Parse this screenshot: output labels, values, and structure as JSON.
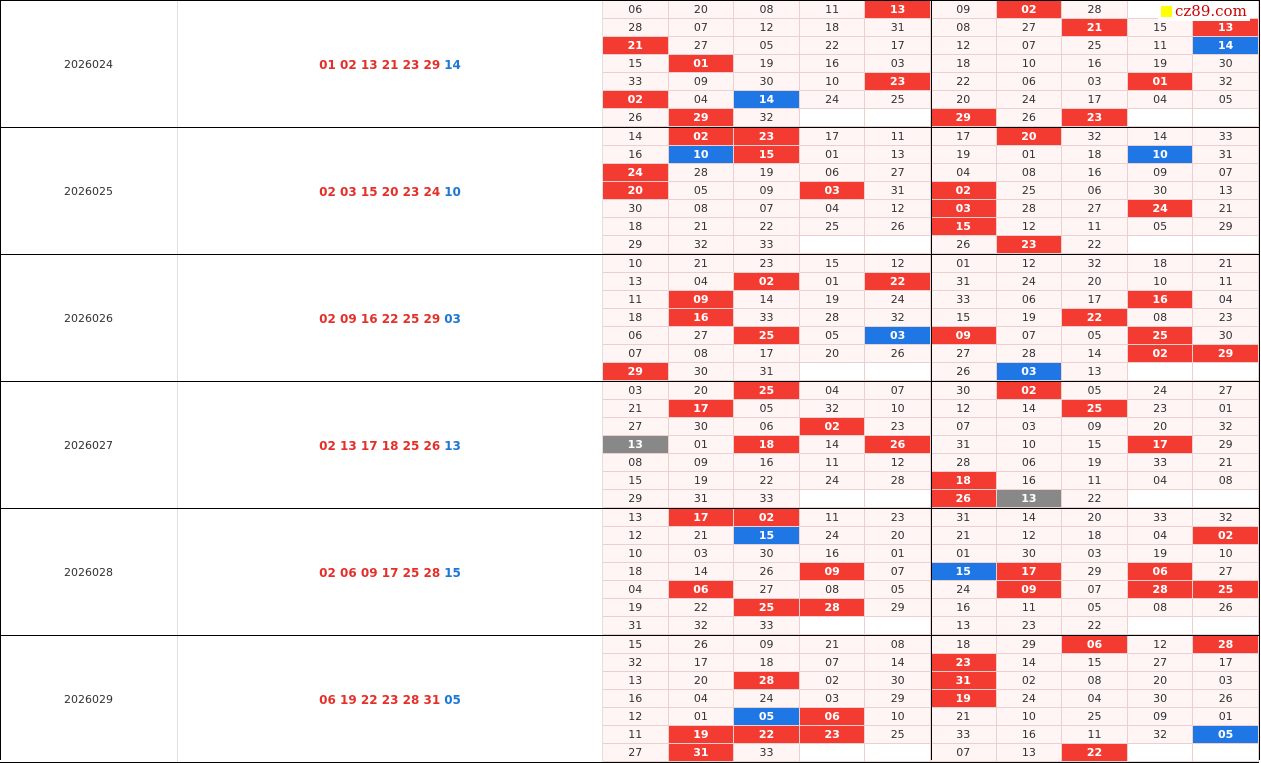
{
  "watermark": "cz89.com",
  "blocks": [
    {
      "period": "2026024",
      "red": "01 02 13 21 23 29",
      "blue": "14",
      "grid": [
        [
          "06",
          "20",
          "08",
          "11",
          {
            "v": "13",
            "hl": "red"
          },
          "09",
          {
            "v": "02",
            "hl": "red"
          },
          "28",
          null,
          null
        ],
        [
          "28",
          "07",
          "12",
          "18",
          "31",
          "08",
          "27",
          {
            "v": "21",
            "hl": "red"
          },
          "15",
          {
            "v": "13",
            "hl": "red"
          }
        ],
        [
          {
            "v": "21",
            "hl": "red"
          },
          "27",
          "05",
          "22",
          "17",
          "12",
          "07",
          "25",
          "11",
          {
            "v": "14",
            "hl": "blue"
          }
        ],
        [
          "15",
          {
            "v": "01",
            "hl": "red"
          },
          "19",
          "16",
          "03",
          "18",
          "10",
          "16",
          "19",
          "30"
        ],
        [
          "33",
          "09",
          "30",
          "10",
          {
            "v": "23",
            "hl": "red"
          },
          "22",
          "06",
          "03",
          {
            "v": "01",
            "hl": "red"
          },
          "32"
        ],
        [
          {
            "v": "02",
            "hl": "red"
          },
          "04",
          {
            "v": "14",
            "hl": "blue"
          },
          "24",
          "25",
          "20",
          "24",
          "17",
          "04",
          "05"
        ],
        [
          "26",
          {
            "v": "29",
            "hl": "red"
          },
          "32",
          null,
          null,
          {
            "v": "29",
            "hl": "red"
          },
          "26",
          {
            "v": "23",
            "hl": "red"
          },
          null,
          null
        ]
      ]
    },
    {
      "period": "2026025",
      "red": "02 03 15 20 23 24",
      "blue": "10",
      "grid": [
        [
          "14",
          {
            "v": "02",
            "hl": "red"
          },
          {
            "v": "23",
            "hl": "red"
          },
          "17",
          "11",
          "17",
          {
            "v": "20",
            "hl": "red"
          },
          "32",
          "14",
          "33"
        ],
        [
          "16",
          {
            "v": "10",
            "hl": "blue"
          },
          {
            "v": "15",
            "hl": "red"
          },
          "01",
          "13",
          "19",
          "01",
          "18",
          {
            "v": "10",
            "hl": "blue"
          },
          "31"
        ],
        [
          {
            "v": "24",
            "hl": "red"
          },
          "28",
          "19",
          "06",
          "27",
          "04",
          "08",
          "16",
          "09",
          "07"
        ],
        [
          {
            "v": "20",
            "hl": "red"
          },
          "05",
          "09",
          {
            "v": "03",
            "hl": "red"
          },
          "31",
          {
            "v": "02",
            "hl": "red"
          },
          "25",
          "06",
          "30",
          "13"
        ],
        [
          "30",
          "08",
          "07",
          "04",
          "12",
          {
            "v": "03",
            "hl": "red"
          },
          "28",
          "27",
          {
            "v": "24",
            "hl": "red"
          },
          "21"
        ],
        [
          "18",
          "21",
          "22",
          "25",
          "26",
          {
            "v": "15",
            "hl": "red"
          },
          "12",
          "11",
          "05",
          "29"
        ],
        [
          "29",
          "32",
          "33",
          null,
          null,
          "26",
          {
            "v": "23",
            "hl": "red"
          },
          "22",
          null,
          null
        ]
      ]
    },
    {
      "period": "2026026",
      "red": "02 09 16 22 25 29",
      "blue": "03",
      "grid": [
        [
          "10",
          "21",
          "23",
          "15",
          "12",
          "01",
          "12",
          "32",
          "18",
          "21"
        ],
        [
          "13",
          "04",
          {
            "v": "02",
            "hl": "red"
          },
          "01",
          {
            "v": "22",
            "hl": "red"
          },
          "31",
          "24",
          "20",
          "10",
          "11"
        ],
        [
          "11",
          {
            "v": "09",
            "hl": "red"
          },
          "14",
          "19",
          "24",
          "33",
          "06",
          "17",
          {
            "v": "16",
            "hl": "red"
          },
          "04"
        ],
        [
          "18",
          {
            "v": "16",
            "hl": "red"
          },
          "33",
          "28",
          "32",
          "15",
          "19",
          {
            "v": "22",
            "hl": "red"
          },
          "08",
          "23"
        ],
        [
          "06",
          "27",
          {
            "v": "25",
            "hl": "red"
          },
          "05",
          {
            "v": "03",
            "hl": "blue"
          },
          {
            "v": "09",
            "hl": "red"
          },
          "07",
          "05",
          {
            "v": "25",
            "hl": "red"
          },
          "30"
        ],
        [
          "07",
          "08",
          "17",
          "20",
          "26",
          "27",
          "28",
          "14",
          {
            "v": "02",
            "hl": "red"
          },
          {
            "v": "29",
            "hl": "red"
          }
        ],
        [
          {
            "v": "29",
            "hl": "red"
          },
          "30",
          "31",
          null,
          null,
          "26",
          {
            "v": "03",
            "hl": "blue"
          },
          "13",
          null,
          null
        ]
      ]
    },
    {
      "period": "2026027",
      "red": "02 13 17 18 25 26",
      "blue": "13",
      "grid": [
        [
          "03",
          "20",
          {
            "v": "25",
            "hl": "red"
          },
          "04",
          "07",
          "30",
          {
            "v": "02",
            "hl": "red"
          },
          "05",
          "24",
          "27"
        ],
        [
          "21",
          {
            "v": "17",
            "hl": "red"
          },
          "05",
          "32",
          "10",
          "12",
          "14",
          {
            "v": "25",
            "hl": "red"
          },
          "23",
          "01"
        ],
        [
          "27",
          "30",
          "06",
          {
            "v": "02",
            "hl": "red"
          },
          "23",
          "07",
          "03",
          "09",
          "20",
          "32"
        ],
        [
          {
            "v": "13",
            "hl": "gray"
          },
          "01",
          {
            "v": "18",
            "hl": "red"
          },
          "14",
          {
            "v": "26",
            "hl": "red"
          },
          "31",
          "10",
          "15",
          {
            "v": "17",
            "hl": "red"
          },
          "29"
        ],
        [
          "08",
          "09",
          "16",
          "11",
          "12",
          "28",
          "06",
          "19",
          "33",
          "21"
        ],
        [
          "15",
          "19",
          "22",
          "24",
          "28",
          {
            "v": "18",
            "hl": "red"
          },
          "16",
          "11",
          "04",
          "08"
        ],
        [
          "29",
          "31",
          "33",
          null,
          null,
          {
            "v": "26",
            "hl": "red"
          },
          {
            "v": "13",
            "hl": "gray"
          },
          "22",
          null,
          null
        ]
      ]
    },
    {
      "period": "2026028",
      "red": "02 06 09 17 25 28",
      "blue": "15",
      "grid": [
        [
          "13",
          {
            "v": "17",
            "hl": "red"
          },
          {
            "v": "02",
            "hl": "red"
          },
          "11",
          "23",
          "31",
          "14",
          "20",
          "33",
          "32"
        ],
        [
          "12",
          "21",
          {
            "v": "15",
            "hl": "blue"
          },
          "24",
          "20",
          "21",
          "12",
          "18",
          "04",
          {
            "v": "02",
            "hl": "red"
          }
        ],
        [
          "10",
          "03",
          "30",
          "16",
          "01",
          "01",
          "30",
          "03",
          "19",
          "10"
        ],
        [
          "18",
          "14",
          "26",
          {
            "v": "09",
            "hl": "red"
          },
          "07",
          {
            "v": "15",
            "hl": "blue"
          },
          {
            "v": "17",
            "hl": "red"
          },
          "29",
          {
            "v": "06",
            "hl": "red"
          },
          "27"
        ],
        [
          "04",
          {
            "v": "06",
            "hl": "red"
          },
          "27",
          "08",
          "05",
          "24",
          {
            "v": "09",
            "hl": "red"
          },
          "07",
          {
            "v": "28",
            "hl": "red"
          },
          {
            "v": "25",
            "hl": "red"
          }
        ],
        [
          "19",
          "22",
          {
            "v": "25",
            "hl": "red"
          },
          {
            "v": "28",
            "hl": "red"
          },
          "29",
          "16",
          "11",
          "05",
          "08",
          "26"
        ],
        [
          "31",
          "32",
          "33",
          null,
          null,
          "13",
          "23",
          "22",
          null,
          null
        ]
      ]
    },
    {
      "period": "2026029",
      "red": "06 19 22 23 28 31",
      "blue": "05",
      "grid": [
        [
          "15",
          "26",
          "09",
          "21",
          "08",
          "18",
          "29",
          {
            "v": "06",
            "hl": "red"
          },
          "12",
          {
            "v": "28",
            "hl": "red"
          }
        ],
        [
          "32",
          "17",
          "18",
          "07",
          "14",
          {
            "v": "23",
            "hl": "red"
          },
          "14",
          "15",
          "27",
          "17"
        ],
        [
          "13",
          "20",
          {
            "v": "28",
            "hl": "red"
          },
          "02",
          "30",
          {
            "v": "31",
            "hl": "red"
          },
          "02",
          "08",
          "20",
          "03"
        ],
        [
          "16",
          "04",
          "24",
          "03",
          "29",
          {
            "v": "19",
            "hl": "red"
          },
          "24",
          "04",
          "30",
          "26"
        ],
        [
          "12",
          "01",
          {
            "v": "05",
            "hl": "blue"
          },
          {
            "v": "06",
            "hl": "red"
          },
          "10",
          "21",
          "10",
          "25",
          "09",
          "01"
        ],
        [
          "11",
          {
            "v": "19",
            "hl": "red"
          },
          {
            "v": "22",
            "hl": "red"
          },
          {
            "v": "23",
            "hl": "red"
          },
          "25",
          "33",
          "16",
          "11",
          "32",
          {
            "v": "05",
            "hl": "blue"
          }
        ],
        [
          "27",
          {
            "v": "31",
            "hl": "red"
          },
          "33",
          null,
          null,
          "07",
          "13",
          {
            "v": "22",
            "hl": "red"
          },
          null,
          null
        ]
      ]
    }
  ]
}
